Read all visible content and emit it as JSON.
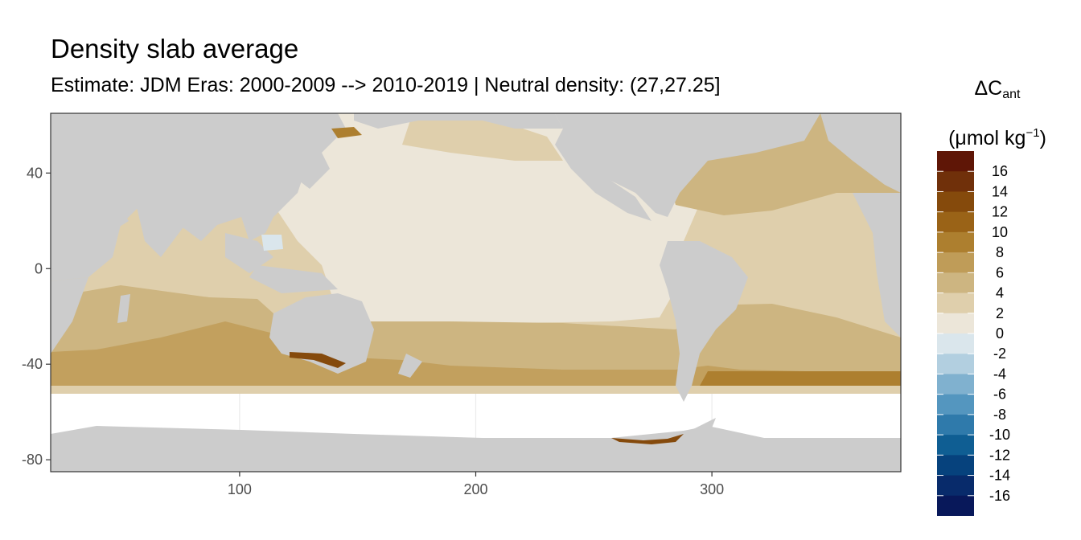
{
  "title": "Density slab average",
  "subtitle": "Estimate: JDM Eras: 2000-2009 --> 2010-2019 | Neutral density: (27,27.25]",
  "legend": {
    "title_main": "ΔC",
    "title_sub": "ant",
    "unit_open": "(μmol kg",
    "unit_sup": "−1",
    "unit_close": ")",
    "bins": [
      {
        "label": "16",
        "color": "#5f1606"
      },
      {
        "label": "14",
        "color": "#70300a"
      },
      {
        "label": "12",
        "color": "#854a0c"
      },
      {
        "label": "10",
        "color": "#9a6317"
      },
      {
        "label": "8",
        "color": "#ad7f2f"
      },
      {
        "label": "6",
        "color": "#bf9c58"
      },
      {
        "label": "4",
        "color": "#cdb581"
      },
      {
        "label": "2",
        "color": "#dfcfac"
      },
      {
        "label": "0",
        "color": "#ece6d9"
      },
      {
        "label": "-2",
        "color": "#dae6ec"
      },
      {
        "label": "-4",
        "color": "#b2cfe0"
      },
      {
        "label": "-6",
        "color": "#80b1cf"
      },
      {
        "label": "-8",
        "color": "#5496bf"
      },
      {
        "label": "-10",
        "color": "#2f7aab"
      },
      {
        "label": "-12",
        "color": "#0f5e93"
      },
      {
        "label": "-14",
        "color": "#06427d"
      },
      {
        "label": "-16",
        "color": "#082b6b"
      }
    ],
    "bottom_color": "#08185a"
  },
  "map": {
    "x_range": [
      20,
      380
    ],
    "y_range": [
      -85,
      65
    ],
    "x_ticks": [
      100,
      200,
      300
    ],
    "y_ticks": [
      40,
      0,
      -40,
      -80
    ],
    "land_color": "#cccccc",
    "nodata_color": "#ffffff",
    "grid_color": "#ebebeb"
  }
}
